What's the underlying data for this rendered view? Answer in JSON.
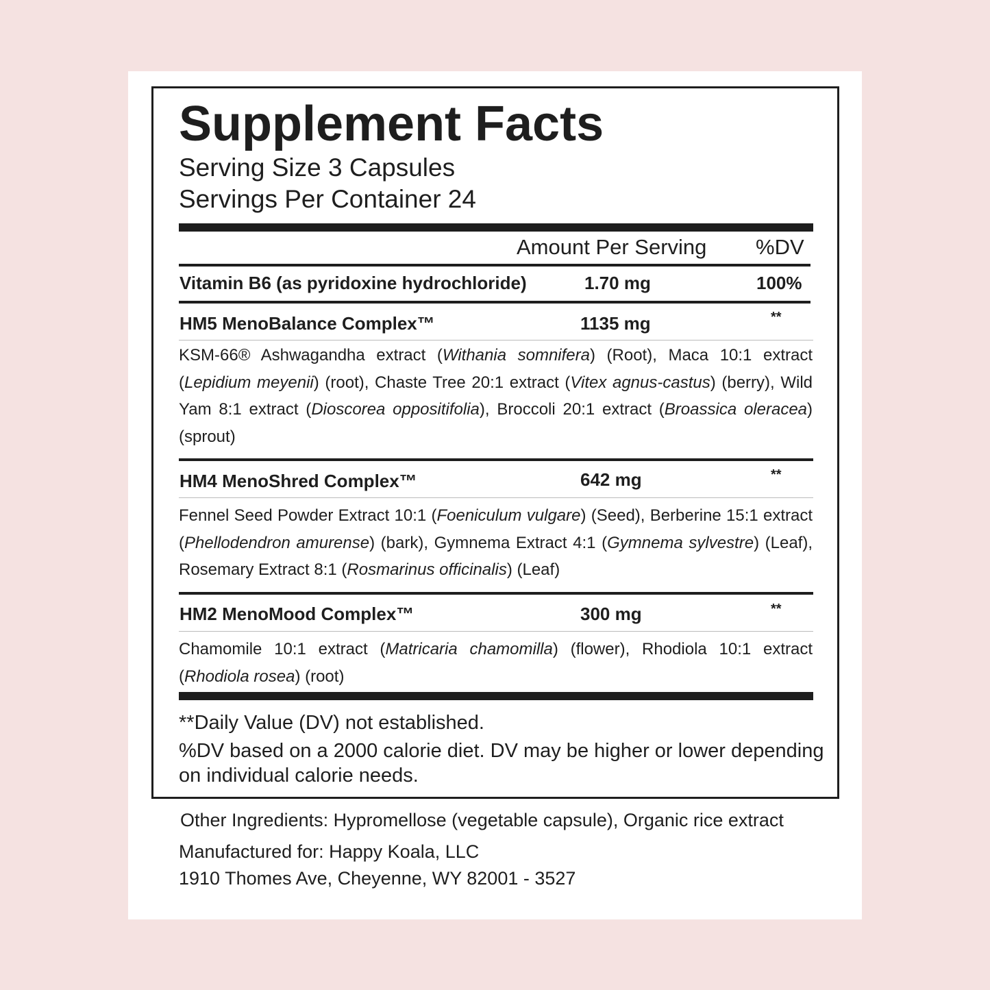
{
  "title": "Supplement Facts",
  "serving_size": "Serving Size 3 Capsules",
  "servings_per_container": "Servings Per Container 24",
  "header": {
    "amount": "Amount Per Serving",
    "dv": "%DV"
  },
  "rows": [
    {
      "name": "Vitamin B6 (as pyridoxine hydrochloride)",
      "amount": "1.70 mg",
      "dv": "100%"
    },
    {
      "name": "HM5 MenoBalance Complex™",
      "amount": "1135 mg",
      "dv": "**",
      "lines": [
        [
          {
            "t": "KSM-66® Ashwagandha extract (",
            "i": false
          },
          {
            "t": "Withania somnifera",
            "i": true
          },
          {
            "t": ") (Root), Maca 10:1 extract",
            "i": false
          }
        ],
        [
          {
            "t": "(",
            "i": false
          },
          {
            "t": "Lepidium meyenii",
            "i": true
          },
          {
            "t": ") (root), Chaste Tree 20:1 extract (",
            "i": false
          },
          {
            "t": "Vitex agnus-castus",
            "i": true
          },
          {
            "t": ") (berry), Wild",
            "i": false
          }
        ],
        [
          {
            "t": "Yam 8:1 extract (",
            "i": false
          },
          {
            "t": "Dioscorea oppositifolia",
            "i": true
          },
          {
            "t": "), Broccoli 20:1 extract (",
            "i": false
          },
          {
            "t": "Broassica oleracea",
            "i": true
          },
          {
            "t": ")",
            "i": false
          }
        ],
        [
          {
            "t": "(sprout)",
            "i": false
          }
        ]
      ]
    },
    {
      "name": "HM4 MenoShred Complex™",
      "amount": "642 mg",
      "dv": "**",
      "lines": [
        [
          {
            "t": "Fennel Seed Powder Extract 10:1 (",
            "i": false
          },
          {
            "t": "Foeniculum vulgare",
            "i": true
          },
          {
            "t": ") (Seed), Berberine 15:1 extract",
            "i": false
          }
        ],
        [
          {
            "t": "(",
            "i": false
          },
          {
            "t": "Phellodendron amurense",
            "i": true
          },
          {
            "t": ") (bark), Gymnema Extract 4:1 (",
            "i": false
          },
          {
            "t": "Gymnema sylvestre",
            "i": true
          },
          {
            "t": ") (Leaf),",
            "i": false
          }
        ],
        [
          {
            "t": "Rosemary Extract 8:1 (",
            "i": false
          },
          {
            "t": "Rosmarinus officinalis",
            "i": true
          },
          {
            "t": ") (Leaf)",
            "i": false
          }
        ]
      ]
    },
    {
      "name": "HM2 MenoMood Complex™",
      "amount": "300 mg",
      "dv": "**",
      "lines": [
        [
          {
            "t": "Chamomile 10:1 extract (",
            "i": false
          },
          {
            "t": "Matricaria chamomilla",
            "i": true
          },
          {
            "t": ") (flower), Rhodiola 10:1 extract",
            "i": false
          }
        ],
        [
          {
            "t": "(",
            "i": false
          },
          {
            "t": "Rhodiola rosea",
            "i": true
          },
          {
            "t": ") (root)",
            "i": false
          }
        ]
      ]
    }
  ],
  "footnotes": [
    "**Daily Value (DV) not established.",
    "%DV based on a 2000 calorie diet. DV may be higher or lower depending",
    "on individual calorie needs."
  ],
  "other_ingredients": {
    "label": "Other Ingredients:",
    "value": " Hypromellose (vegetable capsule), Organic rice extract"
  },
  "manufacturer": {
    "label": "Manufactured for: ",
    "name": "Happy Koala, LLC",
    "address": "1910 Thomes Ave, Cheyenne, WY 82001 - 3527"
  },
  "colors": {
    "background": "#f5e2e1",
    "card": "#ffffff",
    "ink": "#1e1e1e"
  }
}
